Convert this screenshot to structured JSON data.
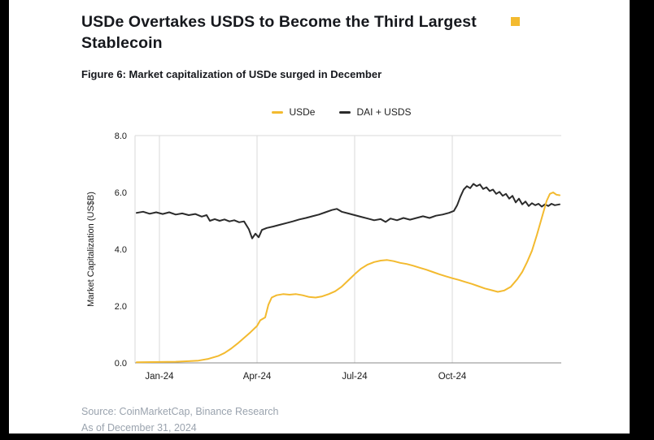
{
  "page": {
    "title": "USDe Overtakes USDS to Become the Third Largest Stablecoin",
    "source_line1": "Source: CoinMarketCap, Binance Research",
    "source_line2": "As of December 31, 2024"
  },
  "colors": {
    "accent_yellow": "#F3BA2F",
    "dark_line": "#2B2B2B",
    "title_text": "#16181D",
    "source_text": "#9AA3AE",
    "gridline": "#DADADA",
    "axis": "#8A8A8A"
  },
  "chart_data": {
    "type": "line",
    "title": "Figure 6: Market capitalization of USDe surged in December",
    "xlabel": "",
    "ylabel": "Market Capitalization (US$B)",
    "ylim": [
      0,
      8
    ],
    "xlim": [
      -0.75,
      12.35
    ],
    "grid": "vertical-only",
    "legend_position": "top-center",
    "yticks": {
      "values": [
        0,
        2,
        4,
        6,
        8
      ],
      "labels": [
        "0.0",
        "2.0",
        "4.0",
        "6.0",
        "8.0"
      ]
    },
    "xticks": [
      {
        "x": 0,
        "label": "Jan-24"
      },
      {
        "x": 3,
        "label": "Apr-24"
      },
      {
        "x": 6,
        "label": "Jul-24"
      },
      {
        "x": 9,
        "label": "Oct-24"
      }
    ],
    "x_units": "months since Jan-2024",
    "legend": [
      {
        "name": "USDe",
        "color": "#F3BA2F"
      },
      {
        "name": "DAI + USDS",
        "color": "#2B2B2B"
      }
    ],
    "series": [
      {
        "name": "USDe",
        "color": "#F3BA2F",
        "points": [
          [
            -0.7,
            0.02
          ],
          [
            0,
            0.03
          ],
          [
            0.5,
            0.04
          ],
          [
            0.9,
            0.06
          ],
          [
            1.2,
            0.08
          ],
          [
            1.5,
            0.14
          ],
          [
            1.8,
            0.24
          ],
          [
            2.0,
            0.35
          ],
          [
            2.2,
            0.5
          ],
          [
            2.4,
            0.68
          ],
          [
            2.6,
            0.88
          ],
          [
            2.8,
            1.08
          ],
          [
            3.0,
            1.3
          ],
          [
            3.1,
            1.5
          ],
          [
            3.25,
            1.6
          ],
          [
            3.35,
            2.05
          ],
          [
            3.45,
            2.3
          ],
          [
            3.6,
            2.38
          ],
          [
            3.8,
            2.42
          ],
          [
            4.0,
            2.4
          ],
          [
            4.2,
            2.42
          ],
          [
            4.4,
            2.38
          ],
          [
            4.6,
            2.32
          ],
          [
            4.8,
            2.3
          ],
          [
            5.0,
            2.34
          ],
          [
            5.2,
            2.42
          ],
          [
            5.4,
            2.52
          ],
          [
            5.6,
            2.68
          ],
          [
            5.8,
            2.9
          ],
          [
            6.0,
            3.12
          ],
          [
            6.2,
            3.32
          ],
          [
            6.4,
            3.46
          ],
          [
            6.6,
            3.55
          ],
          [
            6.8,
            3.6
          ],
          [
            7.0,
            3.62
          ],
          [
            7.2,
            3.58
          ],
          [
            7.4,
            3.52
          ],
          [
            7.6,
            3.48
          ],
          [
            7.8,
            3.42
          ],
          [
            8.0,
            3.35
          ],
          [
            8.2,
            3.28
          ],
          [
            8.4,
            3.2
          ],
          [
            8.6,
            3.12
          ],
          [
            8.8,
            3.05
          ],
          [
            9.0,
            2.98
          ],
          [
            9.2,
            2.92
          ],
          [
            9.4,
            2.85
          ],
          [
            9.6,
            2.78
          ],
          [
            9.8,
            2.7
          ],
          [
            10.0,
            2.62
          ],
          [
            10.2,
            2.56
          ],
          [
            10.4,
            2.5
          ],
          [
            10.6,
            2.55
          ],
          [
            10.8,
            2.68
          ],
          [
            11.0,
            2.95
          ],
          [
            11.15,
            3.2
          ],
          [
            11.3,
            3.55
          ],
          [
            11.45,
            3.95
          ],
          [
            11.6,
            4.5
          ],
          [
            11.75,
            5.1
          ],
          [
            11.9,
            5.7
          ],
          [
            12.0,
            5.95
          ],
          [
            12.1,
            6.0
          ],
          [
            12.2,
            5.92
          ],
          [
            12.3,
            5.9
          ]
        ]
      },
      {
        "name": "DAI + USDS",
        "color": "#2B2B2B",
        "points": [
          [
            -0.7,
            5.28
          ],
          [
            -0.5,
            5.32
          ],
          [
            -0.3,
            5.25
          ],
          [
            -0.1,
            5.3
          ],
          [
            0.1,
            5.24
          ],
          [
            0.3,
            5.3
          ],
          [
            0.5,
            5.22
          ],
          [
            0.7,
            5.26
          ],
          [
            0.9,
            5.2
          ],
          [
            1.1,
            5.24
          ],
          [
            1.3,
            5.15
          ],
          [
            1.45,
            5.2
          ],
          [
            1.55,
            5.0
          ],
          [
            1.7,
            5.06
          ],
          [
            1.85,
            5.0
          ],
          [
            2.0,
            5.05
          ],
          [
            2.15,
            4.98
          ],
          [
            2.3,
            5.02
          ],
          [
            2.45,
            4.95
          ],
          [
            2.6,
            4.98
          ],
          [
            2.75,
            4.7
          ],
          [
            2.85,
            4.38
          ],
          [
            2.95,
            4.55
          ],
          [
            3.05,
            4.42
          ],
          [
            3.15,
            4.68
          ],
          [
            3.3,
            4.75
          ],
          [
            3.5,
            4.8
          ],
          [
            3.7,
            4.86
          ],
          [
            3.9,
            4.92
          ],
          [
            4.1,
            4.98
          ],
          [
            4.3,
            5.05
          ],
          [
            4.5,
            5.1
          ],
          [
            4.7,
            5.16
          ],
          [
            4.9,
            5.22
          ],
          [
            5.1,
            5.3
          ],
          [
            5.3,
            5.38
          ],
          [
            5.45,
            5.42
          ],
          [
            5.6,
            5.32
          ],
          [
            5.8,
            5.26
          ],
          [
            6.0,
            5.2
          ],
          [
            6.2,
            5.14
          ],
          [
            6.4,
            5.08
          ],
          [
            6.6,
            5.02
          ],
          [
            6.8,
            5.06
          ],
          [
            6.95,
            4.96
          ],
          [
            7.1,
            5.08
          ],
          [
            7.3,
            5.02
          ],
          [
            7.5,
            5.1
          ],
          [
            7.7,
            5.04
          ],
          [
            7.9,
            5.1
          ],
          [
            8.1,
            5.16
          ],
          [
            8.3,
            5.1
          ],
          [
            8.5,
            5.18
          ],
          [
            8.7,
            5.22
          ],
          [
            8.9,
            5.28
          ],
          [
            9.05,
            5.35
          ],
          [
            9.15,
            5.55
          ],
          [
            9.25,
            5.85
          ],
          [
            9.35,
            6.1
          ],
          [
            9.45,
            6.22
          ],
          [
            9.55,
            6.15
          ],
          [
            9.65,
            6.3
          ],
          [
            9.75,
            6.22
          ],
          [
            9.85,
            6.28
          ],
          [
            9.95,
            6.12
          ],
          [
            10.05,
            6.18
          ],
          [
            10.15,
            6.05
          ],
          [
            10.25,
            6.1
          ],
          [
            10.35,
            5.95
          ],
          [
            10.45,
            6.02
          ],
          [
            10.55,
            5.88
          ],
          [
            10.65,
            5.95
          ],
          [
            10.75,
            5.78
          ],
          [
            10.85,
            5.88
          ],
          [
            10.95,
            5.65
          ],
          [
            11.05,
            5.78
          ],
          [
            11.15,
            5.58
          ],
          [
            11.25,
            5.68
          ],
          [
            11.35,
            5.52
          ],
          [
            11.45,
            5.62
          ],
          [
            11.55,
            5.55
          ],
          [
            11.65,
            5.6
          ],
          [
            11.75,
            5.5
          ],
          [
            11.85,
            5.58
          ],
          [
            11.95,
            5.52
          ],
          [
            12.05,
            5.6
          ],
          [
            12.15,
            5.55
          ],
          [
            12.3,
            5.58
          ]
        ]
      }
    ]
  }
}
